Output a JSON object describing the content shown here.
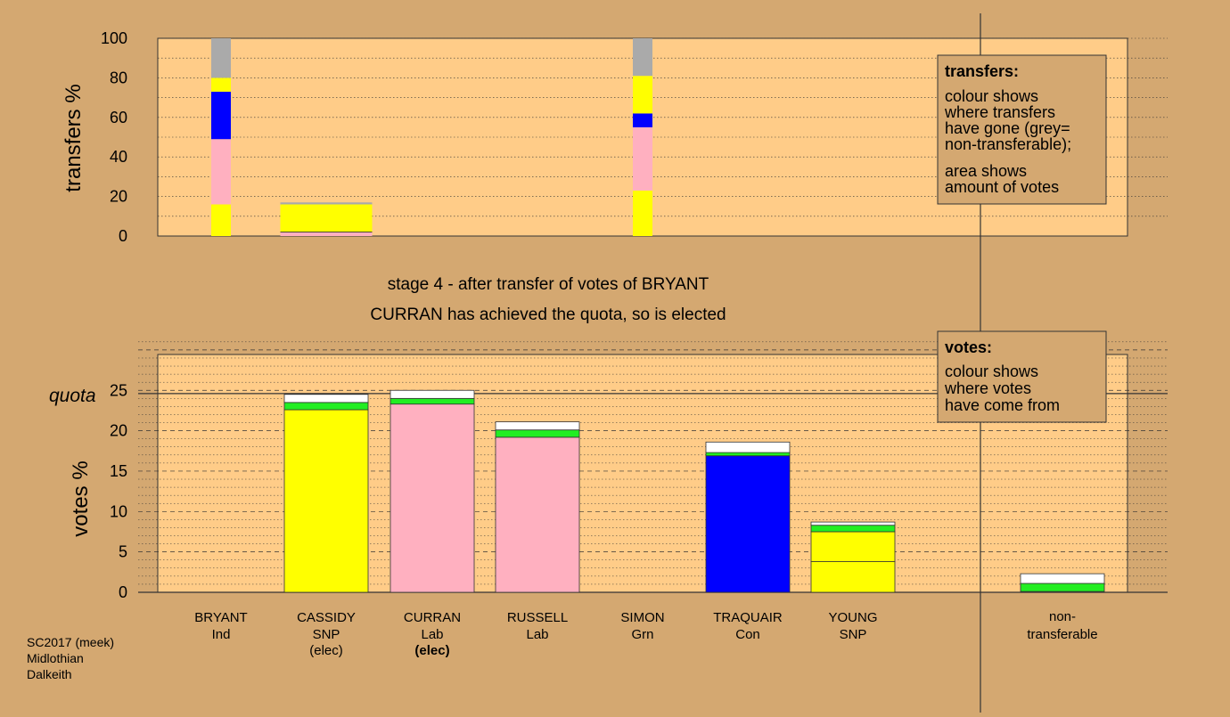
{
  "colors": {
    "background": "#d4a871",
    "plot": "#ffcc88",
    "yellow": "#ffff00",
    "pink": "#ffb0c0",
    "blue": "#0000ff",
    "green": "#22ee22",
    "grey": "#aaaaaa",
    "white": "#ffffff"
  },
  "titles": {
    "line1": "stage 4 - after transfer of votes of BRYANT",
    "line2": "CURRAN has achieved the quota, so is elected"
  },
  "footer": [
    "SC2017 (meek)",
    "Midlothian",
    "Dalkeith"
  ],
  "candidates": [
    {
      "name": "BRYANT",
      "party": "Ind",
      "status": "",
      "bold_status": false
    },
    {
      "name": "CASSIDY",
      "party": "SNP",
      "status": "(elec)",
      "bold_status": false
    },
    {
      "name": "CURRAN",
      "party": "Lab",
      "status": "(elec)",
      "bold_status": true
    },
    {
      "name": "RUSSELL",
      "party": "Lab",
      "status": "",
      "bold_status": false
    },
    {
      "name": "SIMON",
      "party": "Grn",
      "status": "",
      "bold_status": false
    },
    {
      "name": "TRAQUAIR",
      "party": "Con",
      "status": "",
      "bold_status": false
    },
    {
      "name": "YOUNG",
      "party": "SNP",
      "status": "",
      "bold_status": false
    }
  ],
  "nontransferable_label": [
    "non-",
    "transferable"
  ],
  "legends": {
    "transfers": {
      "title": "transfers:",
      "lines1": [
        "colour shows",
        "where transfers",
        "have gone (grey=",
        "non-transferable);"
      ],
      "lines2": [
        "area shows",
        "amount of votes"
      ]
    },
    "votes": {
      "title": "votes:",
      "lines": [
        "colour shows",
        "where votes",
        "have come from"
      ]
    }
  },
  "chart_data": [
    {
      "type": "bar",
      "subtype": "stacked-transfers",
      "ylabel": "transfers %",
      "ylim": [
        0,
        100
      ],
      "yticks": [
        0,
        20,
        40,
        60,
        80,
        100
      ],
      "grid": true,
      "legend_placement": "top-right",
      "columns": [
        {
          "column": "BRYANT",
          "width": "narrow",
          "segments": [
            {
              "color": "yellow",
              "from": 0,
              "to": 16
            },
            {
              "color": "pink",
              "from": 16,
              "to": 49
            },
            {
              "color": "blue",
              "from": 49,
              "to": 73
            },
            {
              "color": "yellow",
              "from": 73,
              "to": 80
            },
            {
              "color": "grey",
              "from": 80,
              "to": 100
            }
          ]
        },
        {
          "column": "CASSIDY",
          "width": "wide",
          "segments": [
            {
              "color": "pink",
              "from": 0,
              "to": 2
            },
            {
              "color": "yellow",
              "from": 2,
              "to": 16
            },
            {
              "color": "grey",
              "from": 16,
              "to": 17
            }
          ]
        },
        {
          "column": "SIMON",
          "width": "narrow",
          "segments": [
            {
              "color": "yellow",
              "from": 0,
              "to": 23
            },
            {
              "color": "pink",
              "from": 23,
              "to": 55
            },
            {
              "color": "blue",
              "from": 55,
              "to": 62
            },
            {
              "color": "yellow",
              "from": 62,
              "to": 81
            },
            {
              "color": "grey",
              "from": 81,
              "to": 100
            }
          ]
        }
      ]
    },
    {
      "type": "bar",
      "subtype": "stacked-votes",
      "ylabel": "votes %",
      "ylim": [
        0,
        25
      ],
      "yticks": [
        0,
        5,
        10,
        15,
        20,
        25
      ],
      "quota": 24.6,
      "quota_label": "quota",
      "grid": true,
      "legend_placement": "top-right",
      "columns": [
        {
          "column": "CASSIDY",
          "segments": [
            {
              "color": "yellow",
              "from": 0,
              "to": 22.6
            },
            {
              "color": "green",
              "from": 22.6,
              "to": 23.5
            },
            {
              "color": "white",
              "from": 23.5,
              "to": 24.5
            }
          ]
        },
        {
          "column": "CURRAN",
          "segments": [
            {
              "color": "pink",
              "from": 0,
              "to": 23.3
            },
            {
              "color": "green",
              "from": 23.3,
              "to": 24.0
            },
            {
              "color": "white",
              "from": 24.0,
              "to": 25.0
            }
          ]
        },
        {
          "column": "RUSSELL",
          "segments": [
            {
              "color": "pink",
              "from": 0,
              "to": 19.2
            },
            {
              "color": "green",
              "from": 19.2,
              "to": 20.1
            },
            {
              "color": "white",
              "from": 20.1,
              "to": 21.1
            }
          ]
        },
        {
          "column": "TRAQUAIR",
          "segments": [
            {
              "color": "blue",
              "from": 0,
              "to": 16.9
            },
            {
              "color": "green",
              "from": 16.9,
              "to": 17.3
            },
            {
              "color": "white",
              "from": 17.3,
              "to": 18.6
            }
          ]
        },
        {
          "column": "YOUNG",
          "segments": [
            {
              "color": "yellow",
              "from": 0,
              "to": 3.8
            },
            {
              "color": "yellow",
              "from": 3.8,
              "to": 7.5
            },
            {
              "color": "green",
              "from": 7.5,
              "to": 8.3
            },
            {
              "color": "white",
              "from": 8.3,
              "to": 8.7
            }
          ]
        },
        {
          "column": "non-transferable",
          "segments": [
            {
              "color": "green",
              "from": 0.1,
              "to": 1.1
            },
            {
              "color": "white",
              "from": 1.1,
              "to": 2.3
            }
          ]
        }
      ]
    }
  ]
}
